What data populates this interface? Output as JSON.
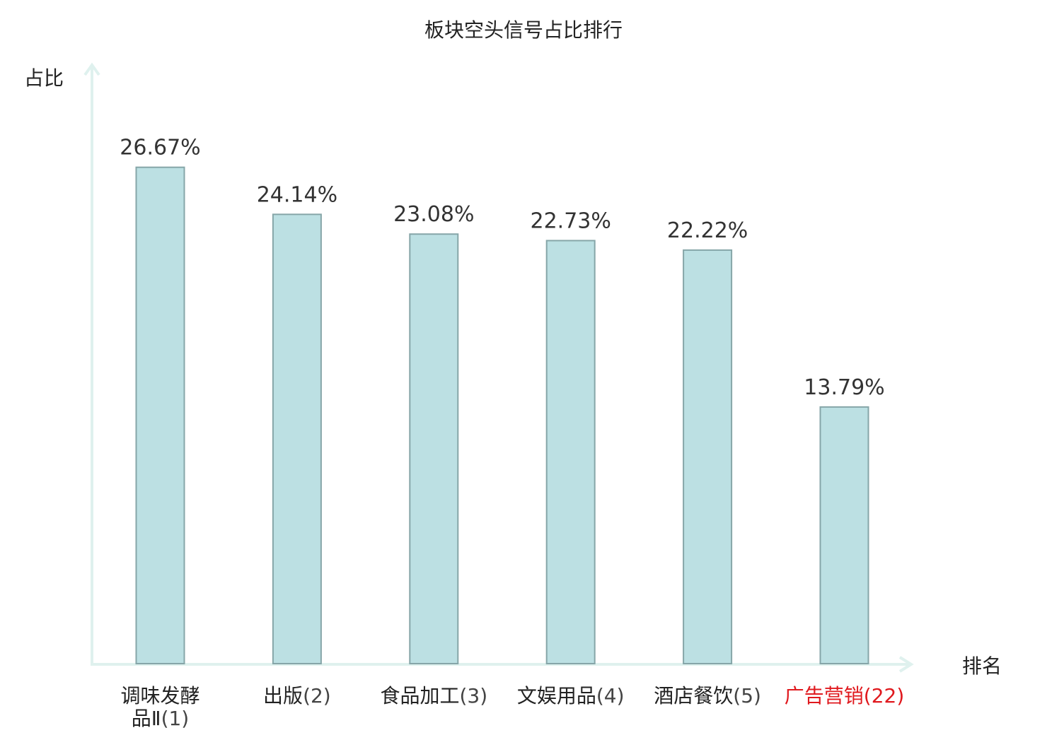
{
  "chart_data": {
    "type": "bar",
    "title": "板块空头信号占比排行",
    "ylabel": "占比",
    "xlabel": "排名",
    "ylim": [
      0,
      30
    ],
    "grid": false,
    "legend": "none",
    "categories": [
      {
        "name_lines": [
          "调味发酵",
          "品Ⅱ"
        ],
        "rank": "(1)",
        "highlight": false
      },
      {
        "name_lines": [
          "出版"
        ],
        "rank": "(2)",
        "highlight": false
      },
      {
        "name_lines": [
          "食品加工"
        ],
        "rank": "(3)",
        "highlight": false
      },
      {
        "name_lines": [
          "文娱用品"
        ],
        "rank": "(4)",
        "highlight": false
      },
      {
        "name_lines": [
          "酒店餐饮"
        ],
        "rank": "(5)",
        "highlight": false
      },
      {
        "name_lines": [
          "广告营销"
        ],
        "rank": "(22)",
        "highlight": true
      }
    ],
    "values": [
      26.67,
      24.14,
      23.08,
      22.73,
      22.22,
      13.79
    ],
    "value_labels": [
      "26.67%",
      "24.14%",
      "23.08%",
      "22.73%",
      "22.22%",
      "13.79%"
    ],
    "colors": {
      "bar_fill": "#bce0e3",
      "bar_stroke": "#86a6a8",
      "axis": "#dff1ee",
      "label_text": "#222222",
      "rank_text": "#444444",
      "highlight_text": "#e0191e"
    }
  }
}
